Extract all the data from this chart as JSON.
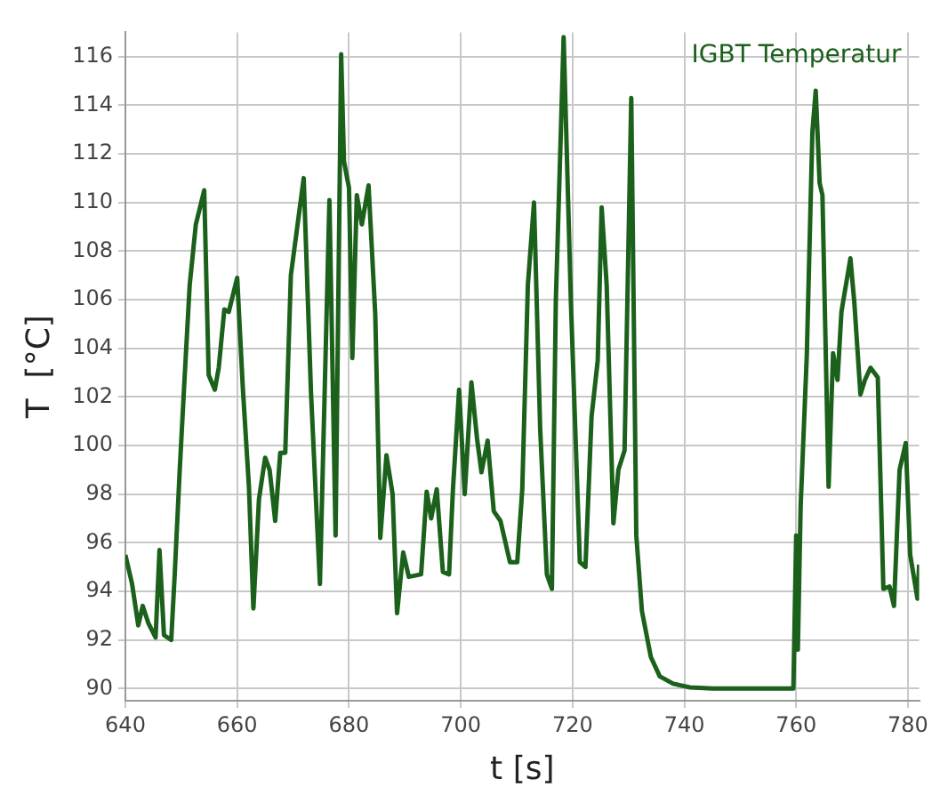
{
  "chart_data": {
    "type": "line",
    "xlabel": "t [s]",
    "ylabel": "T  [°C]",
    "xlim": [
      640,
      782
    ],
    "xticks": [
      640,
      660,
      680,
      700,
      720,
      740,
      760,
      780
    ],
    "ylim": [
      89.5,
      117
    ],
    "yticks": [
      90,
      92,
      94,
      96,
      98,
      100,
      102,
      104,
      106,
      108,
      110,
      112,
      114,
      116
    ],
    "grid": true,
    "marker": "none",
    "line_style": "solid",
    "series": [
      {
        "name": "IGBT Temperatur",
        "color": "#1b601b",
        "x": [
          640,
          641.2,
          642.3,
          643.1,
          644.1,
          645.4,
          646.1,
          646.9,
          648.2,
          648.8,
          649.7,
          650.5,
          651.5,
          652.6,
          654.1,
          654.9,
          656,
          656.7,
          657.7,
          658.5,
          660,
          661,
          662.1,
          662.9,
          663.9,
          665,
          665.8,
          666.8,
          667.7,
          668.6,
          669.6,
          671.9,
          673.2,
          674.8,
          676.5,
          677.6,
          678.6,
          679.1,
          680,
          680.6,
          681.4,
          682.3,
          683.5,
          684.7,
          685.6,
          686.7,
          687.8,
          688.6,
          689.7,
          690.7,
          692.9,
          693.9,
          694.7,
          695.7,
          696.8,
          697.9,
          698.6,
          699.7,
          700.7,
          701.9,
          702.9,
          703.7,
          704.8,
          705.9,
          707.1,
          708.8,
          710.1,
          711,
          712,
          713.1,
          714.2,
          715.4,
          716.3,
          717,
          718.4,
          719.7,
          721.3,
          722.3,
          723.4,
          724.5,
          725.2,
          726.1,
          727.3,
          728.2,
          729.3,
          729.8,
          730.5,
          731.4,
          732.4,
          734,
          735.6,
          738,
          741,
          745,
          759.5,
          760,
          760.3,
          760.8,
          761.9,
          762.9,
          763.5,
          764.2,
          764.7,
          765.8,
          766.6,
          767.4,
          768.1,
          769.7,
          770.4,
          771.5,
          772.3,
          773.3,
          774.6,
          775.6,
          776.7,
          777.5,
          778.5,
          779.6,
          780.4,
          781.7,
          782
        ],
        "values": [
          95.5,
          94.3,
          92.6,
          93.4,
          92.7,
          92.1,
          95.7,
          92.2,
          92,
          94.6,
          98.9,
          102.4,
          106.6,
          109.1,
          110.5,
          102.9,
          102.3,
          103.2,
          105.6,
          105.5,
          106.9,
          102.4,
          98.3,
          93.3,
          97.8,
          99.5,
          99,
          96.9,
          99.7,
          99.7,
          107,
          111,
          102.2,
          94.3,
          110.1,
          96.3,
          116.1,
          111.7,
          110.6,
          103.6,
          110.3,
          109.1,
          110.7,
          105.4,
          96.2,
          99.6,
          98,
          93.1,
          95.6,
          94.6,
          94.7,
          98.1,
          97,
          98.2,
          94.8,
          94.7,
          98.2,
          102.3,
          98,
          102.6,
          100.3,
          98.9,
          100.2,
          97.3,
          96.9,
          95.2,
          95.2,
          98.2,
          106.6,
          110,
          100.7,
          94.7,
          94.1,
          105.9,
          116.8,
          105.9,
          95.2,
          95,
          101.2,
          103.5,
          109.8,
          106.6,
          96.8,
          99,
          99.8,
          105.9,
          114.3,
          96.3,
          93.2,
          91.3,
          90.5,
          90.2,
          90.05,
          90,
          90,
          96.3,
          91.6,
          97.5,
          103.7,
          112.9,
          114.6,
          110.8,
          110.3,
          98.3,
          103.8,
          102.7,
          105.5,
          107.7,
          105.9,
          102.1,
          102.7,
          103.2,
          102.8,
          94.1,
          94.2,
          93.4,
          99,
          100.1,
          95.5,
          93.7,
          95.1
        ]
      }
    ]
  }
}
